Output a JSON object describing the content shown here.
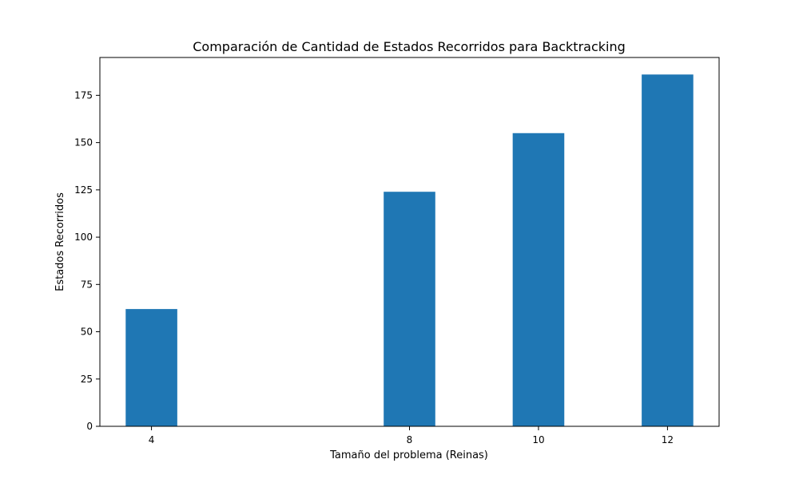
{
  "chart_data": {
    "type": "bar",
    "title": "Comparación de Cantidad de Estados Recorridos para Backtracking",
    "xlabel": "Tamaño del problema (Reinas)",
    "ylabel": "Estados Recorridos",
    "x": [
      4,
      8,
      10,
      12
    ],
    "x_tick_labels": [
      "4",
      "8",
      "10",
      "12"
    ],
    "values": [
      62,
      124,
      155,
      186
    ],
    "xlim": [
      3.2,
      12.8
    ],
    "ylim": [
      0,
      195
    ],
    "y_ticks": [
      0,
      25,
      50,
      75,
      100,
      125,
      150,
      175
    ],
    "y_tick_labels": [
      "0",
      "25",
      "50",
      "75",
      "100",
      "125",
      "150",
      "175"
    ],
    "bar_width": 0.8,
    "bar_color": "#1f77b4",
    "grid": false,
    "legend": false
  }
}
